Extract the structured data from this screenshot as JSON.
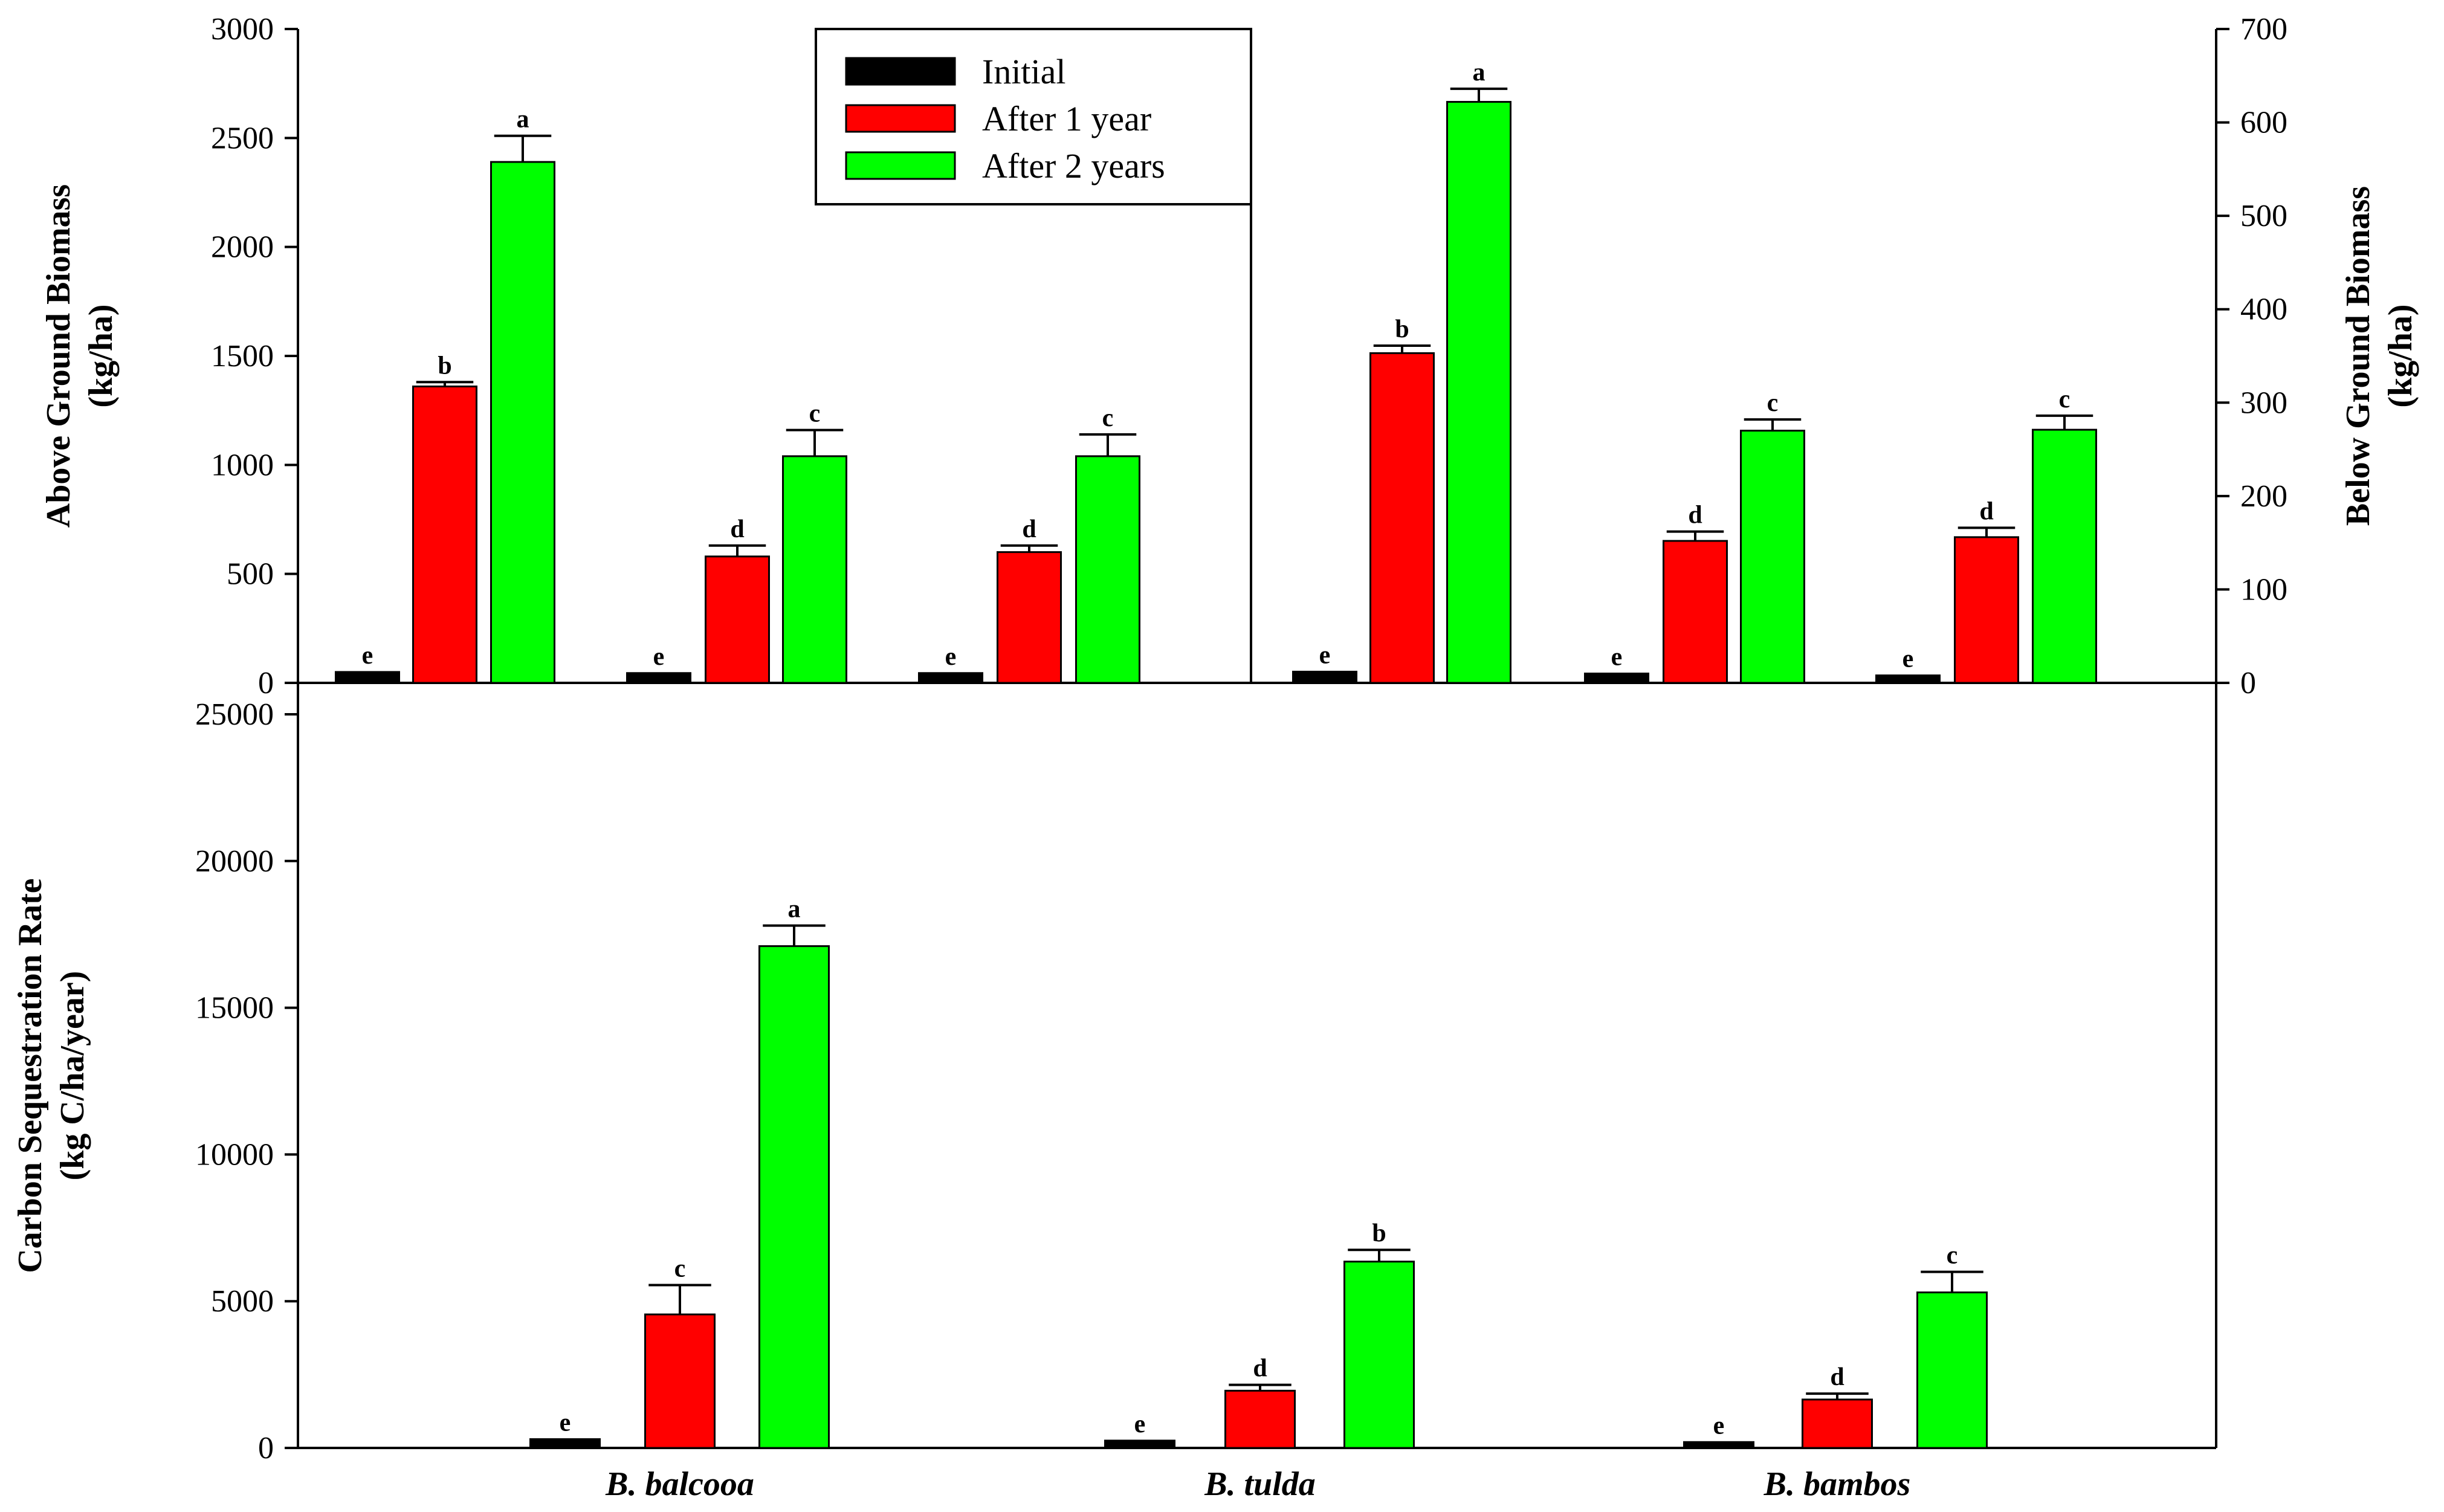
{
  "chart_data": [
    {
      "panel": "top-left",
      "type": "bar",
      "ylabel_line1": "Above Ground Biomass",
      "ylabel_line2": "(kg/ha)",
      "ylim": [
        0,
        3000
      ],
      "yticks": [
        "0",
        "500",
        "1000",
        "1500",
        "2000",
        "2500",
        "3000"
      ],
      "categories": [
        "B. balcooa",
        "B. tulda",
        "B. bambos"
      ],
      "series": [
        {
          "name": "Initial",
          "color": "#000000",
          "values": [
            50,
            45,
            45
          ],
          "errors": [
            0,
            0,
            0
          ],
          "letters": [
            "e",
            "e",
            "e"
          ]
        },
        {
          "name": "After 1 year",
          "color": "#ff0000",
          "values": [
            1360,
            580,
            600
          ],
          "errors": [
            20,
            50,
            30
          ],
          "letters": [
            "b",
            "d",
            "d"
          ]
        },
        {
          "name": "After 2 years",
          "color": "#00ff00",
          "values": [
            2390,
            1040,
            1040
          ],
          "errors": [
            120,
            120,
            100
          ],
          "letters": [
            "a",
            "c",
            "c"
          ]
        }
      ]
    },
    {
      "panel": "top-right",
      "type": "bar",
      "ylabel_line1": "Below Ground Biomass",
      "ylabel_line2": "(kg/ha)",
      "ylim": [
        0,
        700
      ],
      "yticks": [
        "0",
        "100",
        "200",
        "300",
        "400",
        "500",
        "600",
        "700"
      ],
      "categories": [
        "B. balcooa",
        "B. tulda",
        "B. bambos"
      ],
      "series": [
        {
          "name": "Initial",
          "color": "#000000",
          "values": [
            12,
            10,
            8
          ],
          "errors": [
            0,
            0,
            0
          ],
          "letters": [
            "e",
            "e",
            "e"
          ]
        },
        {
          "name": "After 1 year",
          "color": "#ff0000",
          "values": [
            353,
            152,
            156
          ],
          "errors": [
            8,
            10,
            10
          ],
          "letters": [
            "b",
            "d",
            "d"
          ]
        },
        {
          "name": "After 2 years",
          "color": "#00ff00",
          "values": [
            622,
            270,
            271
          ],
          "errors": [
            14,
            12,
            15
          ],
          "letters": [
            "a",
            "c",
            "c"
          ]
        }
      ]
    },
    {
      "panel": "bottom",
      "type": "bar",
      "ylabel_line1": "Carbon Sequestration Rate",
      "ylabel_line2": "(kg C/ha/year)",
      "ylim": [
        0,
        25000
      ],
      "yticks": [
        "0",
        "5000",
        "10000",
        "15000",
        "20000",
        "25000"
      ],
      "categories": [
        "B. balcooa",
        "B. tulda",
        "B. bambos"
      ],
      "series": [
        {
          "name": "Initial",
          "color": "#000000",
          "values": [
            300,
            250,
            200
          ],
          "errors": [
            0,
            0,
            0
          ],
          "letters": [
            "e",
            "e",
            "e"
          ]
        },
        {
          "name": "After 1 year",
          "color": "#ff0000",
          "values": [
            4550,
            1950,
            1650
          ],
          "errors": [
            1000,
            200,
            200
          ],
          "letters": [
            "c",
            "d",
            "d"
          ]
        },
        {
          "name": "After 2 years",
          "color": "#00ff00",
          "values": [
            17100,
            6350,
            5300
          ],
          "errors": [
            700,
            400,
            700
          ],
          "letters": [
            "a",
            "b",
            "c"
          ]
        }
      ]
    }
  ],
  "legend": {
    "entries": [
      {
        "label": "Initial",
        "color": "#000000"
      },
      {
        "label": "After 1 year",
        "color": "#ff0000"
      },
      {
        "label": "After 2 years",
        "color": "#00ff00"
      }
    ]
  }
}
